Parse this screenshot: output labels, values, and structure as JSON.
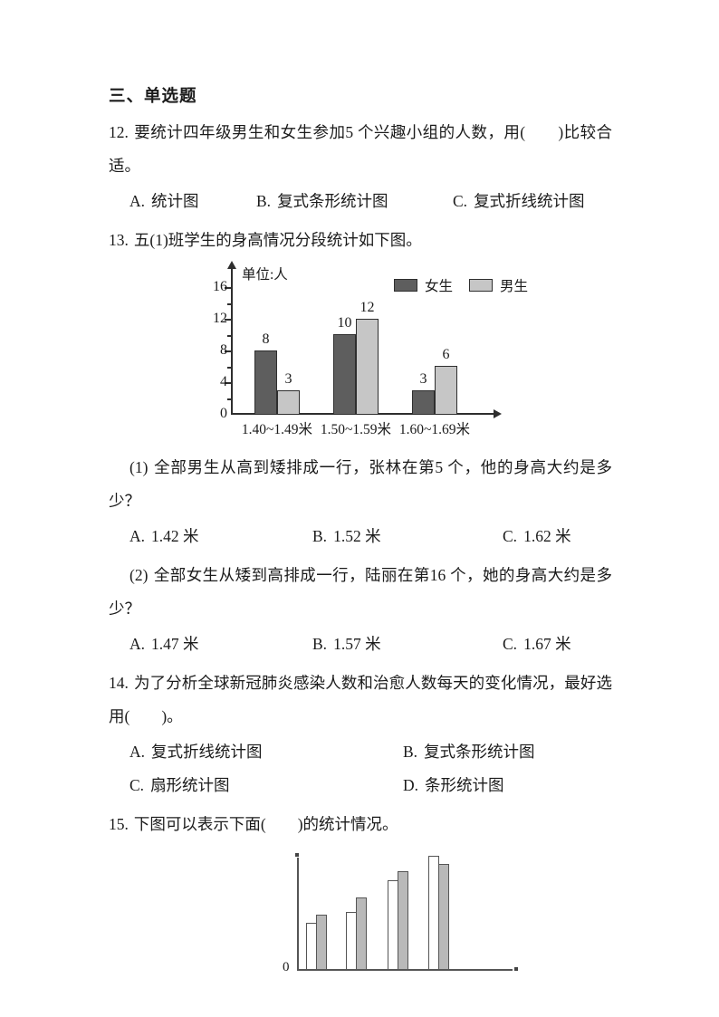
{
  "section": {
    "heading": "三、单选题"
  },
  "q12": {
    "number": "12.",
    "text": "要统计四年级男生和女生参加5 个兴趣小组的人数，用(　　)比较合适。",
    "options": [
      {
        "label": "A.",
        "text": "统计图"
      },
      {
        "label": "B.",
        "text": "复式条形统计图"
      },
      {
        "label": "C.",
        "text": "复式折线统计图"
      }
    ]
  },
  "q13": {
    "number": "13.",
    "text": "五(1)班学生的身高情况分段统计如下图。",
    "sub1": {
      "label": "(1)",
      "text": "全部男生从高到矮排成一行，张林在第5 个，他的身高大约是多少？",
      "options": [
        {
          "label": "A.",
          "text": "1.42 米"
        },
        {
          "label": "B.",
          "text": "1.52 米"
        },
        {
          "label": "C.",
          "text": "1.62 米"
        }
      ]
    },
    "sub2": {
      "label": "(2)",
      "text": "全部女生从矮到高排成一行，陆丽在第16 个，她的身高大约是多少？",
      "options": [
        {
          "label": "A.",
          "text": "1.47 米"
        },
        {
          "label": "B.",
          "text": "1.57 米"
        },
        {
          "label": "C.",
          "text": "1.67 米"
        }
      ]
    }
  },
  "q14": {
    "number": "14.",
    "text": "为了分析全球新冠肺炎感染人数和治愈人数每天的变化情况，最好选用(　　)。",
    "options": [
      {
        "label": "A.",
        "text": "复式折线统计图"
      },
      {
        "label": "B.",
        "text": "复式条形统计图"
      },
      {
        "label": "C.",
        "text": "扇形统计图"
      },
      {
        "label": "D.",
        "text": "条形统计图"
      }
    ]
  },
  "q15": {
    "number": "15.",
    "text": "下图可以表示下面(　　)的统计情况。"
  },
  "chart_data": [
    {
      "type": "bar",
      "title": "",
      "unit_label": "单位:人",
      "categories": [
        "1.40~1.49米",
        "1.50~1.59米",
        "1.60~1.69米"
      ],
      "series": [
        {
          "name": "女生",
          "key": "girls",
          "color": "#5e5e5e",
          "values": [
            8,
            10,
            3
          ]
        },
        {
          "name": "男生",
          "key": "boys",
          "color": "#c6c6c6",
          "values": [
            3,
            12,
            6
          ]
        }
      ],
      "xlabel": "",
      "ylabel": "单位:人",
      "ylim": [
        0,
        17
      ],
      "y_major_ticks": [
        0,
        4,
        8,
        12,
        16
      ],
      "y_minor_step": 2,
      "grid": false,
      "legend_position": "top-right",
      "data_labels": true
    },
    {
      "type": "bar",
      "title": "",
      "origin_label": "0",
      "categories": [
        "",
        "",
        "",
        ""
      ],
      "series": [
        {
          "name": "white-bars",
          "key": "white",
          "color": "#ffffff",
          "values": [
            41,
            50,
            78,
            100
          ]
        },
        {
          "name": "gray-bars",
          "key": "gray",
          "color": "#b9b9b9",
          "values": [
            48,
            63,
            86,
            93
          ]
        }
      ],
      "xlabel": "",
      "ylabel": "",
      "ylim": [
        0,
        105
      ],
      "grid": false,
      "values_estimated_relative_percent": true
    }
  ]
}
